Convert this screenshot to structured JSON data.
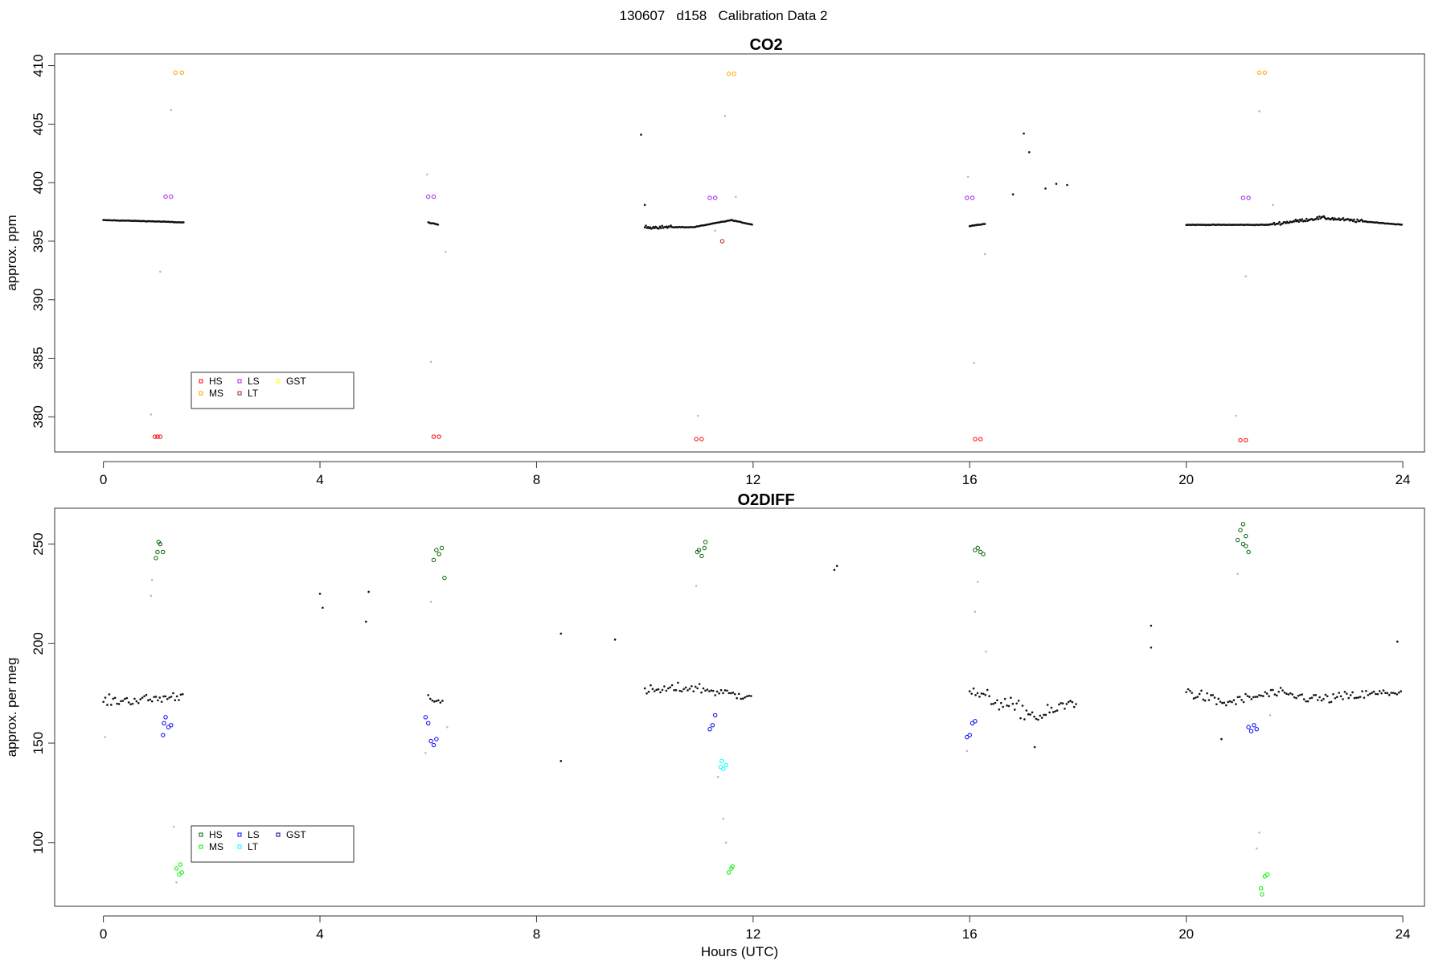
{
  "page_title": "130607   d158   Calibration Data 2",
  "chart_data": [
    {
      "type": "scatter",
      "title": "CO2",
      "xlabel": "",
      "ylabel": "approx. ppm",
      "xlim": [
        -0.9,
        24.4
      ],
      "ylim": [
        377,
        411
      ],
      "xticks": [
        0,
        4,
        8,
        12,
        16,
        20,
        24
      ],
      "yticks": [
        380,
        385,
        390,
        395,
        400,
        405,
        410
      ],
      "legend": {
        "placement": "bottom-left",
        "entries": [
          {
            "label": "HS",
            "color": "#ff0000"
          },
          {
            "label": "MS",
            "color": "#ffa500"
          },
          {
            "label": "LS",
            "color": "#a020f0"
          },
          {
            "label": "LT",
            "color": "#b22222"
          },
          {
            "label": "GST",
            "color": "#ffff00"
          }
        ]
      },
      "baseline": [
        [
          0.0,
          396.8
        ],
        [
          0.9,
          396.7
        ],
        [
          1.5,
          396.6
        ],
        [
          4.0,
          396.4
        ],
        [
          6.0,
          396.6
        ],
        [
          6.2,
          396.4
        ],
        [
          8.0,
          396.3
        ],
        [
          10.0,
          396.2
        ],
        [
          10.9,
          396.2
        ],
        [
          11.6,
          396.8
        ],
        [
          12.0,
          396.4
        ],
        [
          14.0,
          396.4
        ],
        [
          16.0,
          396.3
        ],
        [
          16.3,
          396.5
        ],
        [
          18.0,
          396.4
        ],
        [
          20.0,
          396.4
        ],
        [
          21.0,
          396.4
        ],
        [
          21.5,
          396.4
        ],
        [
          22.5,
          397.0
        ],
        [
          24.0,
          396.4
        ]
      ],
      "excursions": [
        {
          "x": 9.93,
          "y": 404.1
        },
        {
          "x": 10.0,
          "y": 398.1
        },
        {
          "x": 17.0,
          "y": 404.2
        },
        {
          "x": 17.1,
          "y": 402.6
        },
        {
          "x": 17.6,
          "y": 399.9
        },
        {
          "x": 17.8,
          "y": 399.8
        },
        {
          "x": 17.4,
          "y": 399.5
        },
        {
          "x": 16.8,
          "y": 399.0
        }
      ],
      "transitions": [
        {
          "x": 0.88,
          "y": 380.2
        },
        {
          "x": 1.05,
          "y": 392.4
        },
        {
          "x": 1.25,
          "y": 406.2
        },
        {
          "x": 5.98,
          "y": 400.7
        },
        {
          "x": 6.05,
          "y": 384.7
        },
        {
          "x": 6.32,
          "y": 394.1
        },
        {
          "x": 10.98,
          "y": 380.1
        },
        {
          "x": 11.3,
          "y": 395.9
        },
        {
          "x": 11.48,
          "y": 405.7
        },
        {
          "x": 11.68,
          "y": 398.8
        },
        {
          "x": 15.97,
          "y": 400.5
        },
        {
          "x": 16.08,
          "y": 384.6
        },
        {
          "x": 16.28,
          "y": 393.9
        },
        {
          "x": 20.92,
          "y": 380.1
        },
        {
          "x": 21.1,
          "y": 392.0
        },
        {
          "x": 21.35,
          "y": 406.1
        },
        {
          "x": 21.6,
          "y": 398.1
        }
      ],
      "calibrations": [
        {
          "label": "HS",
          "color": "#ff0000",
          "points": [
            [
              0.95,
              378.3
            ],
            [
              1.0,
              378.3
            ],
            [
              1.05,
              378.3
            ],
            [
              6.1,
              378.3
            ],
            [
              6.2,
              378.3
            ],
            [
              10.95,
              378.1
            ],
            [
              11.05,
              378.1
            ],
            [
              16.1,
              378.1
            ],
            [
              16.2,
              378.1
            ],
            [
              21.0,
              378.0
            ],
            [
              21.1,
              378.0
            ]
          ]
        },
        {
          "label": "LS",
          "color": "#a020f0",
          "points": [
            [
              1.15,
              398.8
            ],
            [
              1.25,
              398.8
            ],
            [
              6.0,
              398.8
            ],
            [
              6.1,
              398.8
            ],
            [
              11.2,
              398.7
            ],
            [
              11.3,
              398.7
            ],
            [
              15.95,
              398.7
            ],
            [
              16.05,
              398.7
            ],
            [
              21.05,
              398.7
            ],
            [
              21.15,
              398.7
            ]
          ]
        },
        {
          "label": "MS",
          "color": "#ffa500",
          "points": [
            [
              1.33,
              409.4
            ],
            [
              1.45,
              409.4
            ],
            [
              11.55,
              409.3
            ],
            [
              11.65,
              409.3
            ],
            [
              21.35,
              409.4
            ],
            [
              21.45,
              409.4
            ]
          ]
        },
        {
          "label": "LT",
          "color": "#b22222",
          "points": [
            [
              11.43,
              395.0
            ]
          ]
        }
      ]
    },
    {
      "type": "scatter",
      "title": "O2DIFF",
      "xlabel": "Hours (UTC)",
      "ylabel": "approx. per meg",
      "xlim": [
        -0.9,
        24.4
      ],
      "ylim": [
        68,
        268
      ],
      "xticks": [
        0,
        4,
        8,
        12,
        16,
        20,
        24
      ],
      "yticks": [
        100,
        150,
        200,
        250
      ],
      "legend": {
        "placement": "bottom-left",
        "entries": [
          {
            "label": "HS",
            "color": "#006400"
          },
          {
            "label": "MS",
            "color": "#00ee00"
          },
          {
            "label": "LS",
            "color": "#0000ff"
          },
          {
            "label": "LT",
            "color": "#00ffff"
          },
          {
            "label": "GST",
            "color": "#00008b"
          }
        ]
      },
      "baseline": [
        [
          0.0,
          171
        ],
        [
          0.9,
          172
        ],
        [
          1.5,
          174
        ],
        [
          4.0,
          176
        ],
        [
          6.0,
          175
        ],
        [
          6.3,
          168
        ],
        [
          8.0,
          176
        ],
        [
          10.0,
          176
        ],
        [
          10.9,
          178
        ],
        [
          11.7,
          174
        ],
        [
          12.0,
          175
        ],
        [
          14.0,
          175
        ],
        [
          16.0,
          176
        ],
        [
          16.4,
          172
        ],
        [
          17.3,
          163
        ],
        [
          18.0,
          172
        ],
        [
          20.0,
          176
        ],
        [
          20.7,
          170
        ],
        [
          21.6,
          175
        ],
        [
          22.5,
          172
        ],
        [
          24.0,
          176
        ]
      ],
      "excursions": [
        {
          "x": 4.0,
          "y": 225
        },
        {
          "x": 4.05,
          "y": 218
        },
        {
          "x": 4.9,
          "y": 226
        },
        {
          "x": 4.85,
          "y": 211
        },
        {
          "x": 8.45,
          "y": 205
        },
        {
          "x": 8.45,
          "y": 141
        },
        {
          "x": 9.45,
          "y": 202
        },
        {
          "x": 13.55,
          "y": 239
        },
        {
          "x": 13.5,
          "y": 237
        },
        {
          "x": 19.35,
          "y": 209
        },
        {
          "x": 19.35,
          "y": 198
        },
        {
          "x": 23.9,
          "y": 201
        },
        {
          "x": 17.2,
          "y": 148
        },
        {
          "x": 20.65,
          "y": 152
        }
      ],
      "transitions": [
        {
          "x": 0.03,
          "y": 153
        },
        {
          "x": 0.88,
          "y": 224
        },
        {
          "x": 0.9,
          "y": 232
        },
        {
          "x": 1.3,
          "y": 108
        },
        {
          "x": 1.35,
          "y": 80
        },
        {
          "x": 5.95,
          "y": 145
        },
        {
          "x": 6.05,
          "y": 221
        },
        {
          "x": 6.35,
          "y": 158
        },
        {
          "x": 10.95,
          "y": 229
        },
        {
          "x": 11.35,
          "y": 133
        },
        {
          "x": 11.45,
          "y": 112
        },
        {
          "x": 11.5,
          "y": 100
        },
        {
          "x": 15.95,
          "y": 146
        },
        {
          "x": 16.1,
          "y": 216
        },
        {
          "x": 16.15,
          "y": 231
        },
        {
          "x": 16.3,
          "y": 196
        },
        {
          "x": 20.95,
          "y": 235
        },
        {
          "x": 21.35,
          "y": 105
        },
        {
          "x": 21.3,
          "y": 97
        },
        {
          "x": 21.55,
          "y": 164
        }
      ],
      "calibrations": [
        {
          "label": "HS",
          "color": "#006400",
          "points": [
            [
              0.97,
              243
            ],
            [
              1.0,
              246
            ],
            [
              1.02,
              251
            ],
            [
              1.05,
              250
            ],
            [
              1.1,
              246
            ],
            [
              6.1,
              242
            ],
            [
              6.15,
              247
            ],
            [
              6.2,
              245
            ],
            [
              6.25,
              248
            ],
            [
              6.3,
              233
            ],
            [
              10.97,
              246
            ],
            [
              11.0,
              247
            ],
            [
              11.05,
              244
            ],
            [
              11.1,
              248
            ],
            [
              11.12,
              251
            ],
            [
              16.1,
              247
            ],
            [
              16.15,
              248
            ],
            [
              16.2,
              246
            ],
            [
              16.25,
              245
            ],
            [
              20.95,
              252
            ],
            [
              21.0,
              257
            ],
            [
              21.05,
              260
            ],
            [
              21.05,
              250
            ],
            [
              21.1,
              249
            ],
            [
              21.1,
              254
            ],
            [
              21.15,
              246
            ]
          ]
        },
        {
          "label": "LS",
          "color": "#0000ff",
          "points": [
            [
              1.1,
              154
            ],
            [
              1.12,
              160
            ],
            [
              1.15,
              163
            ],
            [
              1.2,
              158
            ],
            [
              1.25,
              159
            ],
            [
              5.95,
              163
            ],
            [
              6.0,
              160
            ],
            [
              6.05,
              151
            ],
            [
              6.1,
              149
            ],
            [
              6.15,
              152
            ],
            [
              11.2,
              157
            ],
            [
              11.25,
              159
            ],
            [
              11.3,
              164
            ],
            [
              15.95,
              153
            ],
            [
              16.0,
              154
            ],
            [
              16.05,
              160
            ],
            [
              16.1,
              161
            ],
            [
              21.15,
              158
            ],
            [
              21.2,
              156
            ],
            [
              21.25,
              159
            ],
            [
              21.3,
              157
            ]
          ]
        },
        {
          "label": "MS",
          "color": "#00ee00",
          "points": [
            [
              1.35,
              87
            ],
            [
              1.4,
              84
            ],
            [
              1.45,
              85
            ],
            [
              1.42,
              89
            ],
            [
              11.55,
              85
            ],
            [
              11.6,
              87
            ],
            [
              11.62,
              88
            ],
            [
              21.38,
              77
            ],
            [
              21.4,
              74
            ],
            [
              21.45,
              83
            ],
            [
              21.5,
              84
            ]
          ]
        },
        {
          "label": "LT",
          "color": "#00ffff",
          "points": [
            [
              11.4,
              138
            ],
            [
              11.45,
              137
            ],
            [
              11.5,
              139
            ],
            [
              11.42,
              141
            ]
          ]
        }
      ]
    }
  ]
}
